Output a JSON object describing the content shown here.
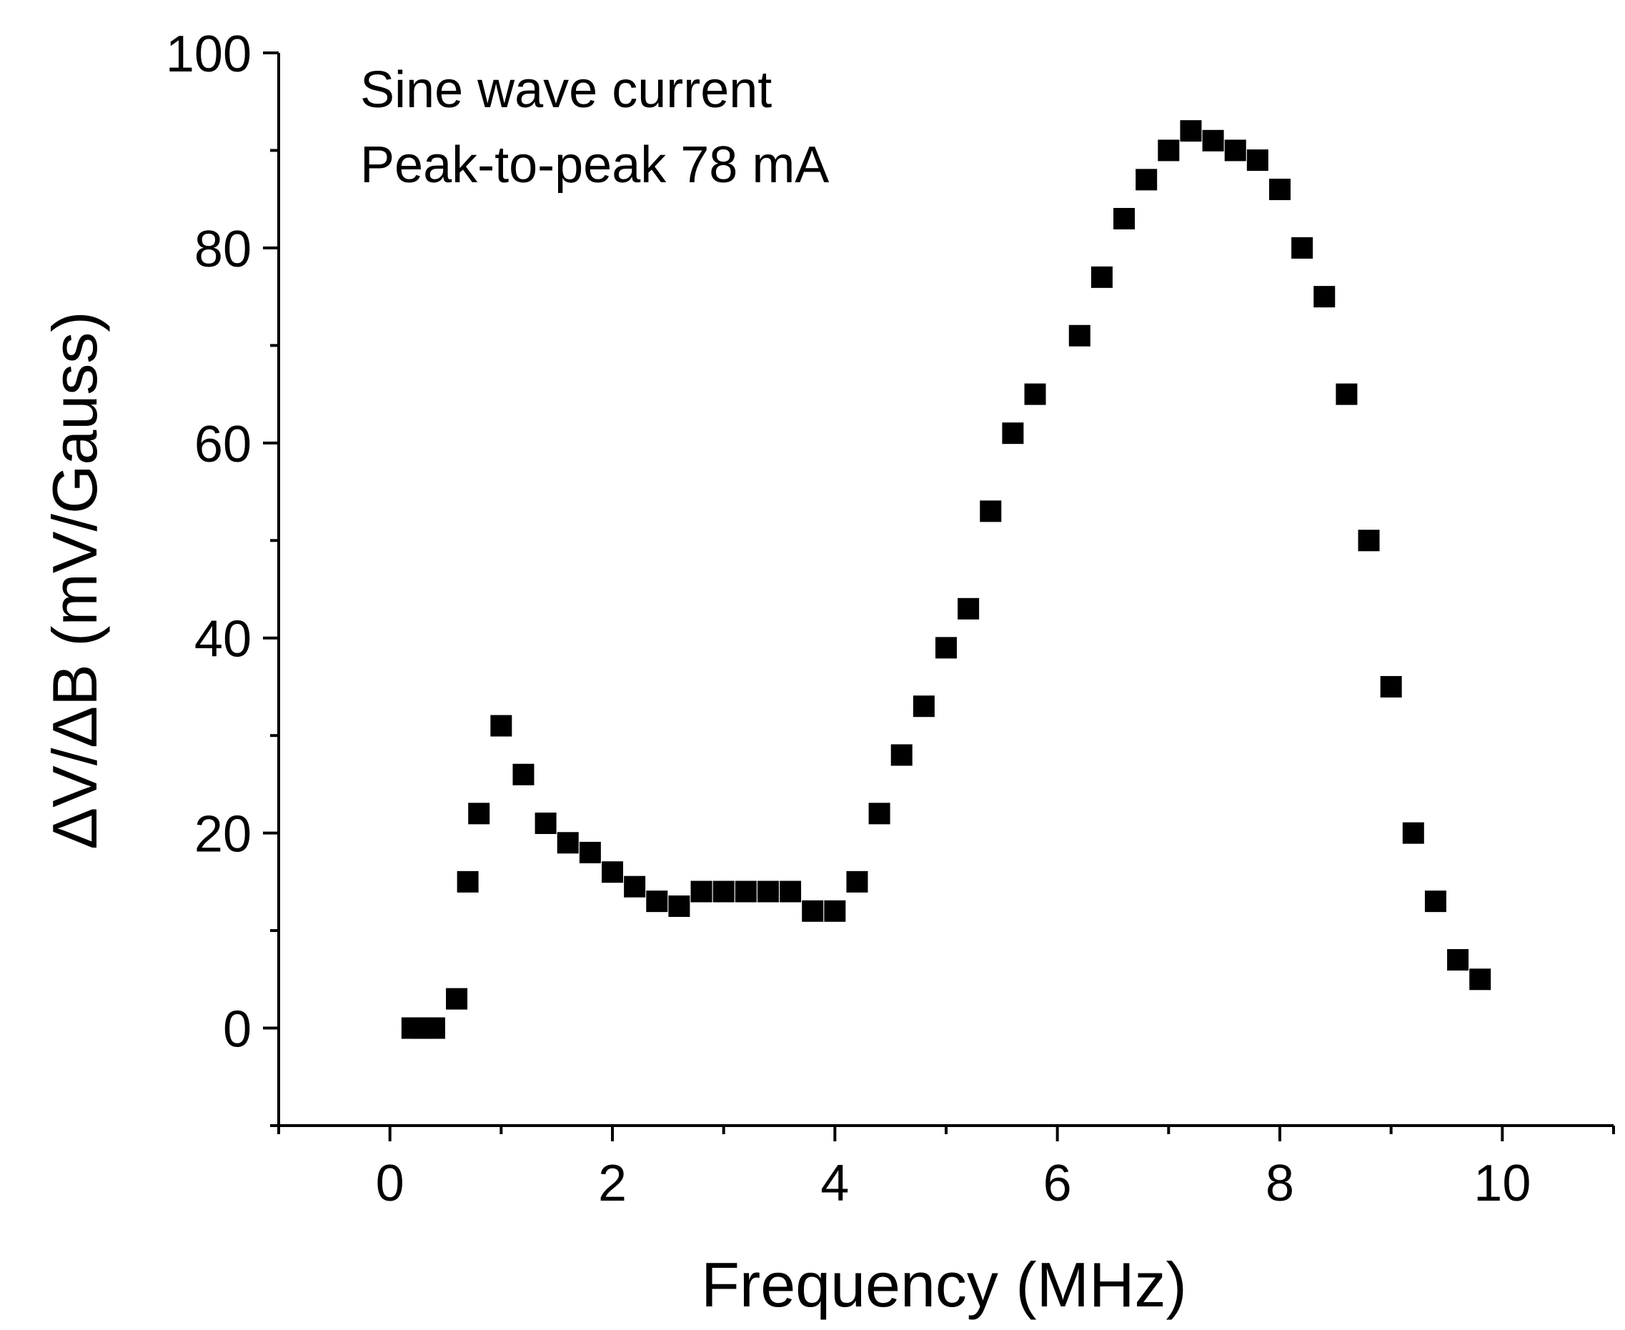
{
  "chart_data": {
    "type": "scatter",
    "title": "",
    "xlabel": "Frequency (MHz)",
    "ylabel": "ΔV/ΔB (mV/Gauss)",
    "xlim": [
      -1,
      11
    ],
    "ylim": [
      -10,
      100
    ],
    "xticks": [
      0,
      2,
      4,
      6,
      8,
      10
    ],
    "xtick_labels": [
      "0",
      "2",
      "4",
      "6",
      "8",
      "10"
    ],
    "yticks": [
      0,
      20,
      40,
      60,
      80,
      100
    ],
    "ytick_labels": [
      "0",
      "20",
      "40",
      "60",
      "80",
      "100"
    ],
    "annotations": [
      "Sine wave current",
      "Peak-to-peak 78 mA"
    ],
    "marker": "square",
    "marker_color": "#000000",
    "series": [
      {
        "name": "ΔV/ΔB",
        "x": [
          0.2,
          0.3,
          0.4,
          0.6,
          0.7,
          0.8,
          1.0,
          1.2,
          1.4,
          1.6,
          1.8,
          2.0,
          2.2,
          2.4,
          2.6,
          2.8,
          3.0,
          3.2,
          3.4,
          3.6,
          3.8,
          4.0,
          4.2,
          4.4,
          4.6,
          4.8,
          5.0,
          5.2,
          5.4,
          5.6,
          5.8,
          6.2,
          6.4,
          6.6,
          6.8,
          7.0,
          7.2,
          7.4,
          7.6,
          7.8,
          8.0,
          8.2,
          8.4,
          8.6,
          8.8,
          9.0,
          9.2,
          9.4,
          9.6,
          9.8
        ],
        "y": [
          0,
          0,
          0,
          3,
          15,
          22,
          31,
          26,
          21,
          19,
          18,
          16,
          14.5,
          13,
          12.5,
          14,
          14,
          14,
          14,
          14,
          12,
          12,
          15,
          22,
          28,
          33,
          39,
          43,
          53,
          61,
          65,
          71,
          77,
          83,
          87,
          90,
          92,
          91,
          90,
          89,
          86,
          80,
          75,
          65,
          50,
          35,
          20,
          13,
          7,
          5
        ]
      }
    ]
  }
}
